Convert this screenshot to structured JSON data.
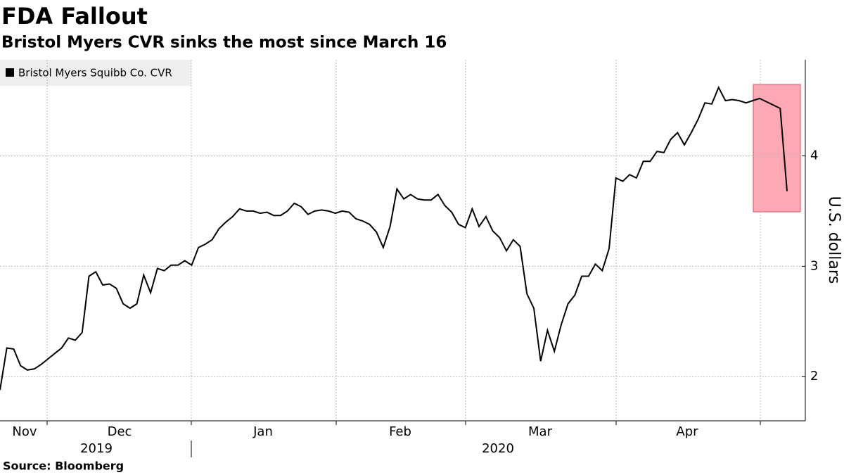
{
  "chart_data": {
    "type": "line",
    "title": "FDA Fallout",
    "subtitle": "Bristol Myers CVR sinks the most since March 16",
    "source": "Source: Bloomberg",
    "y_label": "U.S. dollars",
    "x_labels": [
      "Nov",
      "Dec",
      "Jan",
      "Feb",
      "Mar",
      "Apr"
    ],
    "year_labels": [
      "2019",
      "2020"
    ],
    "ylim": [
      1.6,
      4.87
    ],
    "yticks": [
      2,
      3,
      4
    ],
    "grid": true,
    "legend": "top-left",
    "series": [
      {
        "name": "Bristol Myers Squibb Co. CVR",
        "color": "#000000",
        "values": [
          1.88,
          2.26,
          2.25,
          2.1,
          2.06,
          2.07,
          2.11,
          2.16,
          2.21,
          2.26,
          2.35,
          2.33,
          2.4,
          2.91,
          2.95,
          2.83,
          2.84,
          2.8,
          2.66,
          2.62,
          2.66,
          2.92,
          2.76,
          2.98,
          2.96,
          3.01,
          3.01,
          3.05,
          3.01,
          3.17,
          3.2,
          3.24,
          3.34,
          3.4,
          3.45,
          3.52,
          3.5,
          3.5,
          3.48,
          3.49,
          3.46,
          3.46,
          3.5,
          3.57,
          3.54,
          3.47,
          3.5,
          3.51,
          3.5,
          3.48,
          3.5,
          3.49,
          3.43,
          3.41,
          3.38,
          3.31,
          3.17,
          3.36,
          3.7,
          3.61,
          3.65,
          3.61,
          3.6,
          3.6,
          3.65,
          3.55,
          3.49,
          3.38,
          3.35,
          3.52,
          3.36,
          3.45,
          3.32,
          3.26,
          3.14,
          3.24,
          3.18,
          2.75,
          2.62,
          2.14,
          2.42,
          2.23,
          2.47,
          2.66,
          2.74,
          2.91,
          2.91,
          3.02,
          2.96,
          3.16,
          3.8,
          3.77,
          3.83,
          3.8,
          3.95,
          3.95,
          4.04,
          4.03,
          4.15,
          4.21,
          4.1,
          4.21,
          4.33,
          4.48,
          4.47,
          4.62,
          4.5,
          4.51,
          4.5,
          4.48,
          4.5,
          4.52,
          4.49,
          4.46,
          4.43,
          3.68
        ]
      }
    ]
  }
}
